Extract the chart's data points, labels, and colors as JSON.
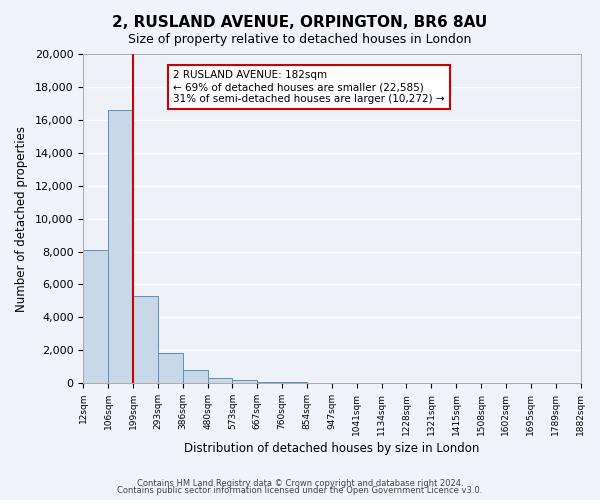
{
  "title": "2, RUSLAND AVENUE, ORPINGTON, BR6 8AU",
  "subtitle": "Size of property relative to detached houses in London",
  "xlabel": "Distribution of detached houses by size in London",
  "ylabel": "Number of detached properties",
  "bar_color": "#c8d8e8",
  "bar_edge_color": "#6090b8",
  "background_color": "#eef2f8",
  "grid_color": "#ffffff",
  "bin_labels": [
    "12sqm",
    "106sqm",
    "199sqm",
    "293sqm",
    "386sqm",
    "480sqm",
    "573sqm",
    "667sqm",
    "760sqm",
    "854sqm",
    "947sqm",
    "1041sqm",
    "1134sqm",
    "1228sqm",
    "1321sqm",
    "1415sqm",
    "1508sqm",
    "1602sqm",
    "1695sqm",
    "1789sqm",
    "1882sqm"
  ],
  "bar_values": [
    8100,
    16600,
    5300,
    1850,
    800,
    320,
    200,
    100,
    60,
    0,
    0,
    0,
    0,
    0,
    0,
    0,
    0,
    0,
    0,
    0
  ],
  "ylim": [
    0,
    20000
  ],
  "yticks": [
    0,
    2000,
    4000,
    6000,
    8000,
    10000,
    12000,
    14000,
    16000,
    18000,
    20000
  ],
  "property_line_x": 2,
  "property_line_label": "2 RUSLAND AVENUE: 182sqm",
  "annotation_smaller": "← 69% of detached houses are smaller (22,585)",
  "annotation_larger": "31% of semi-detached houses are larger (10,272) →",
  "annotation_box_color": "#ffffff",
  "annotation_border_color": "#cc0000",
  "red_line_color": "#cc0000",
  "footer_line1": "Contains HM Land Registry data © Crown copyright and database right 2024.",
  "footer_line2": "Contains public sector information licensed under the Open Government Licence v3.0."
}
